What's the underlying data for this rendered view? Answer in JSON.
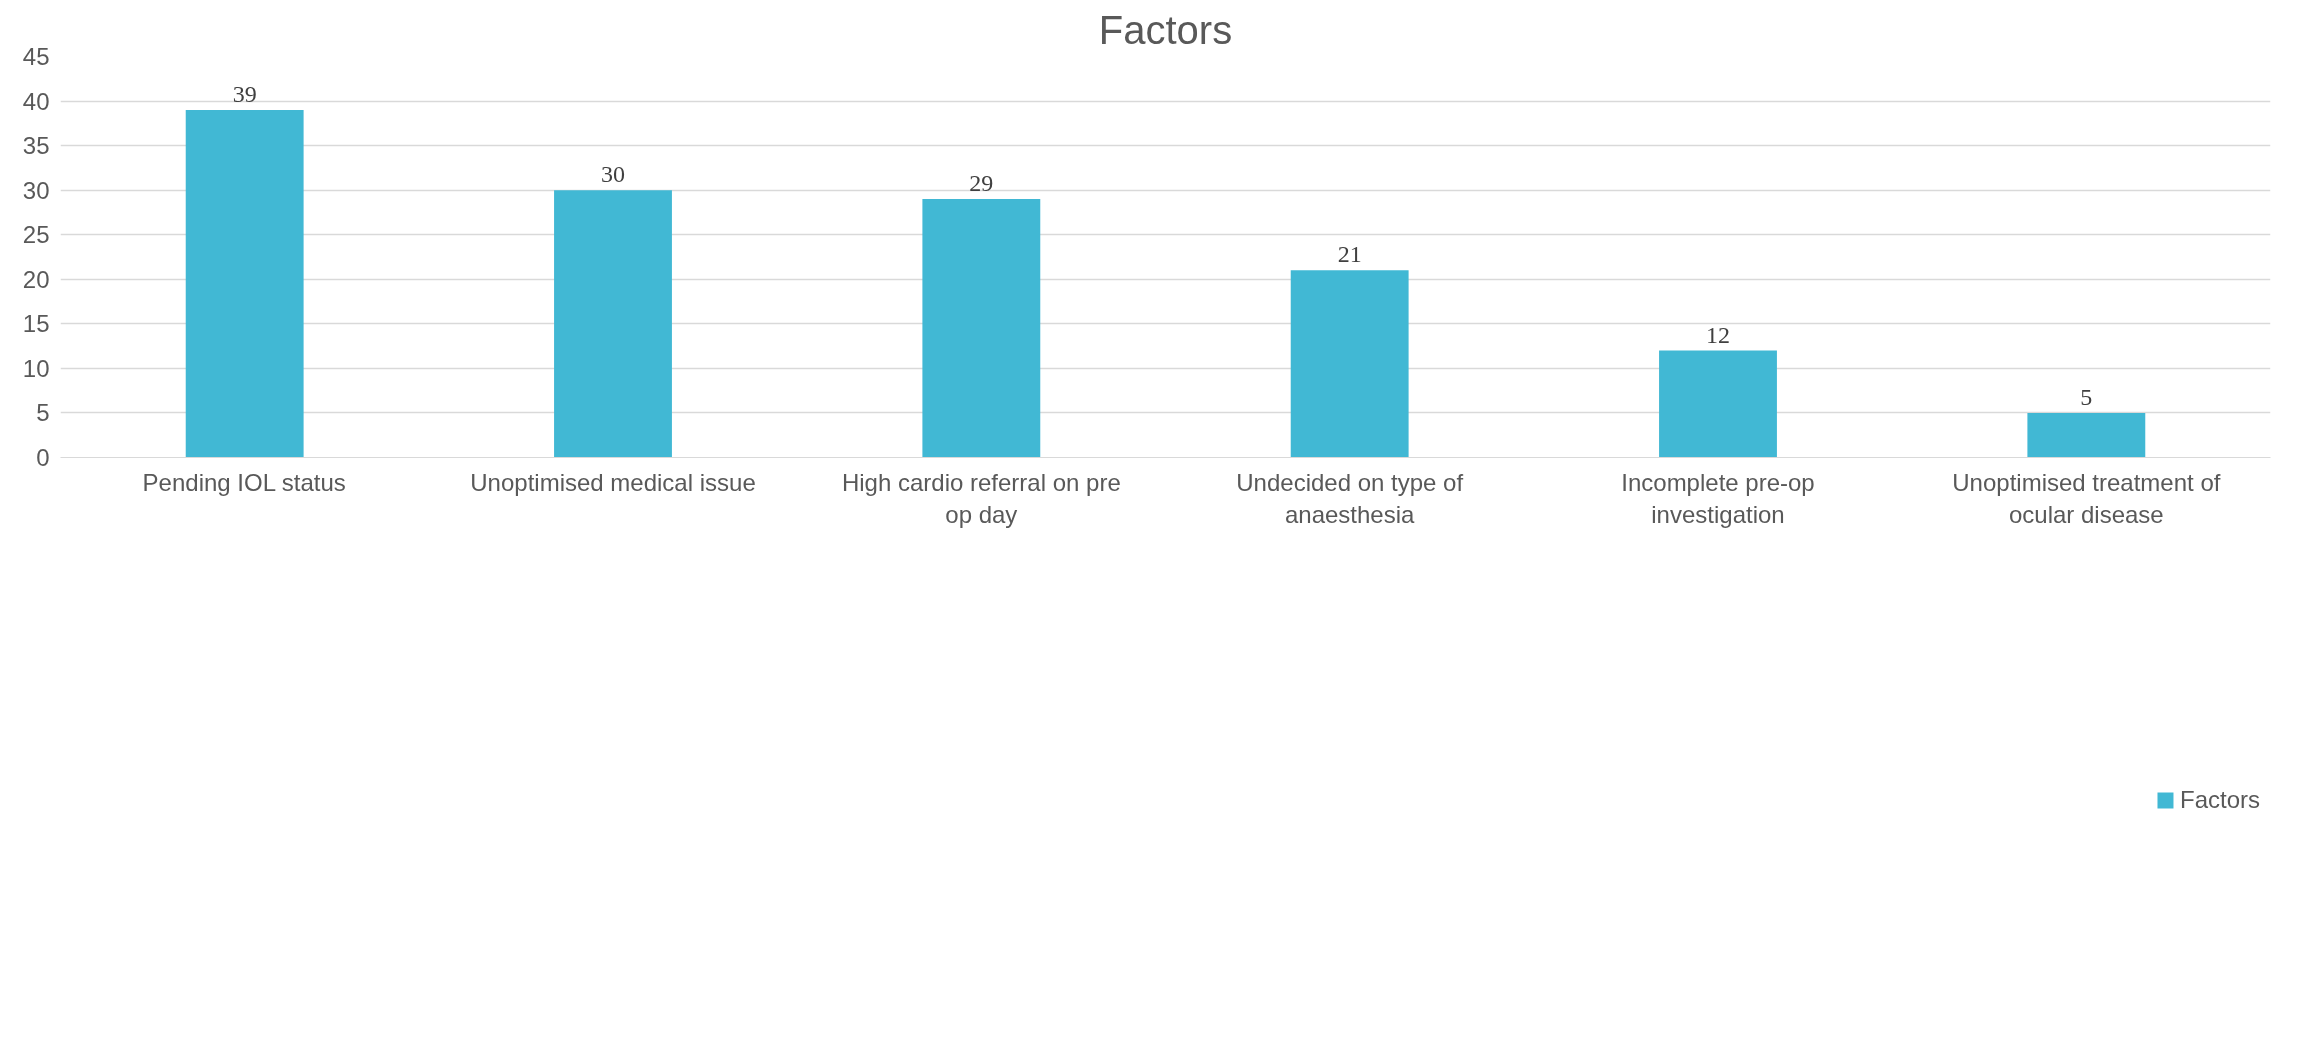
{
  "chart_data": {
    "type": "bar",
    "title": "Factors",
    "categories": [
      "Pending IOL status",
      "Unoptimised medical issue",
      "High cardio referral on pre op day",
      "Undecided on type of anaesthesia",
      "Incomplete pre-op investigation",
      "Unoptimised treatment of ocular disease"
    ],
    "series": [
      {
        "name": "Factors",
        "color": "#41b8d4",
        "values": [
          39,
          30,
          29,
          21,
          12,
          5
        ]
      }
    ],
    "ylim": [
      0,
      45
    ],
    "yticks": [
      0,
      5,
      10,
      15,
      20,
      25,
      30,
      35,
      40,
      45
    ],
    "grid": "y",
    "legend": "bottom",
    "data_labels": true
  }
}
